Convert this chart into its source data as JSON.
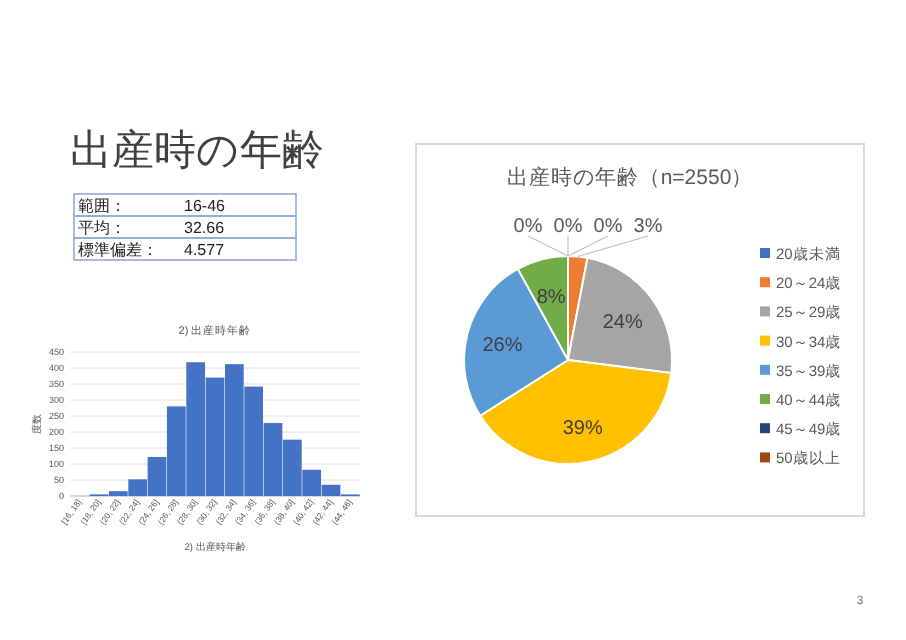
{
  "chart_data": [
    {
      "type": "other",
      "title": "出産時の年齢",
      "annotations": [
        "範囲：",
        "16-46",
        "平均：",
        "32.66",
        "標準偏差：",
        "4.577",
        "3"
      ]
    },
    {
      "type": "pie",
      "title": "出産時の年齢（n=2550）",
      "categories": [
        "20歳未満",
        "20～24歳",
        "25～29歳",
        "30～34歳",
        "35～39歳",
        "40～44歳",
        "45～49歳",
        "50歳以上"
      ],
      "values": [
        0,
        3,
        24,
        39,
        26,
        8,
        0,
        0
      ],
      "colors": [
        "#4472c4",
        "#ed7d31",
        "#a5a5a5",
        "#ffc000",
        "#5b9bd5",
        "#70ad47",
        "#264478",
        "#9e480e"
      ],
      "value_labels": [
        "0%",
        "3%",
        "24%",
        "39%",
        "26%",
        "8%",
        "0%",
        "0%"
      ],
      "legend": "right"
    },
    {
      "type": "bar",
      "title": "2) 出産時年齢",
      "xlabel": "2) 出産時年齢",
      "ylabel": "度数",
      "categories": [
        "[16, 18]",
        "(18, 20]",
        "(20, 22]",
        "(22, 24]",
        "(24, 26]",
        "(26, 28]",
        "(28, 30]",
        "(30, 32]",
        "(32, 34]",
        "(34, 36]",
        "(36, 38]",
        "(38, 40]",
        "(40, 42]",
        "(42, 44]",
        "(44, 46]"
      ],
      "values": [
        null,
        5,
        15,
        52,
        122,
        280,
        418,
        370,
        412,
        342,
        228,
        176,
        82,
        35,
        5
      ],
      "color": "#4472c4",
      "ylim": [
        0,
        450
      ],
      "yticks": [
        0,
        50,
        100,
        150,
        200,
        250,
        300,
        350,
        400,
        450
      ],
      "grid": "y"
    }
  ]
}
